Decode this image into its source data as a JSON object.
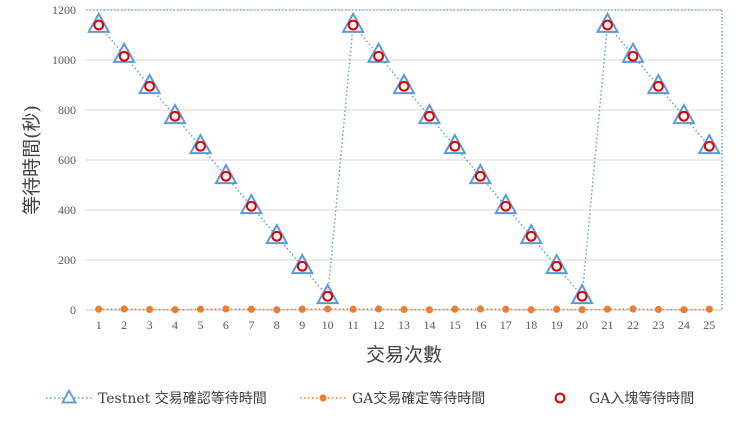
{
  "chart_data": {
    "type": "line",
    "xlabel": "交易次數",
    "ylabel": "等待時間(秒)",
    "ylim": [
      0,
      1200
    ],
    "yticks": [
      0,
      200,
      400,
      600,
      800,
      1000,
      1200
    ],
    "grid": true,
    "legend_position": "bottom",
    "x": [
      1,
      2,
      3,
      4,
      5,
      6,
      7,
      8,
      9,
      10,
      11,
      12,
      13,
      14,
      15,
      16,
      17,
      18,
      19,
      20,
      21,
      22,
      23,
      24,
      25
    ],
    "series": [
      {
        "name": "Testnet 交易確認等待時間",
        "color": "#5B9BD5",
        "marker": "triangle",
        "line": "dotted",
        "values": [
          1140,
          1020,
          895,
          775,
          655,
          535,
          415,
          295,
          175,
          55,
          1140,
          1020,
          895,
          775,
          655,
          535,
          415,
          295,
          175,
          55,
          1140,
          1020,
          895,
          775,
          655
        ]
      },
      {
        "name": "GA交易確定等待時間",
        "color": "#ED7D31",
        "marker": "dot",
        "line": "dotted",
        "values": [
          3,
          4,
          2,
          1,
          3,
          4,
          3,
          1,
          3,
          4,
          3,
          4,
          2,
          1,
          3,
          4,
          3,
          1,
          3,
          1,
          3,
          4,
          2,
          1,
          3
        ]
      },
      {
        "name": "GA入塊等待時間",
        "color": "#E00000",
        "marker": "circle",
        "line": "none",
        "values": [
          1140,
          1015,
          895,
          775,
          655,
          535,
          415,
          295,
          175,
          55,
          1140,
          1015,
          895,
          775,
          655,
          535,
          415,
          295,
          175,
          55,
          1140,
          1015,
          895,
          775,
          655
        ]
      }
    ]
  }
}
